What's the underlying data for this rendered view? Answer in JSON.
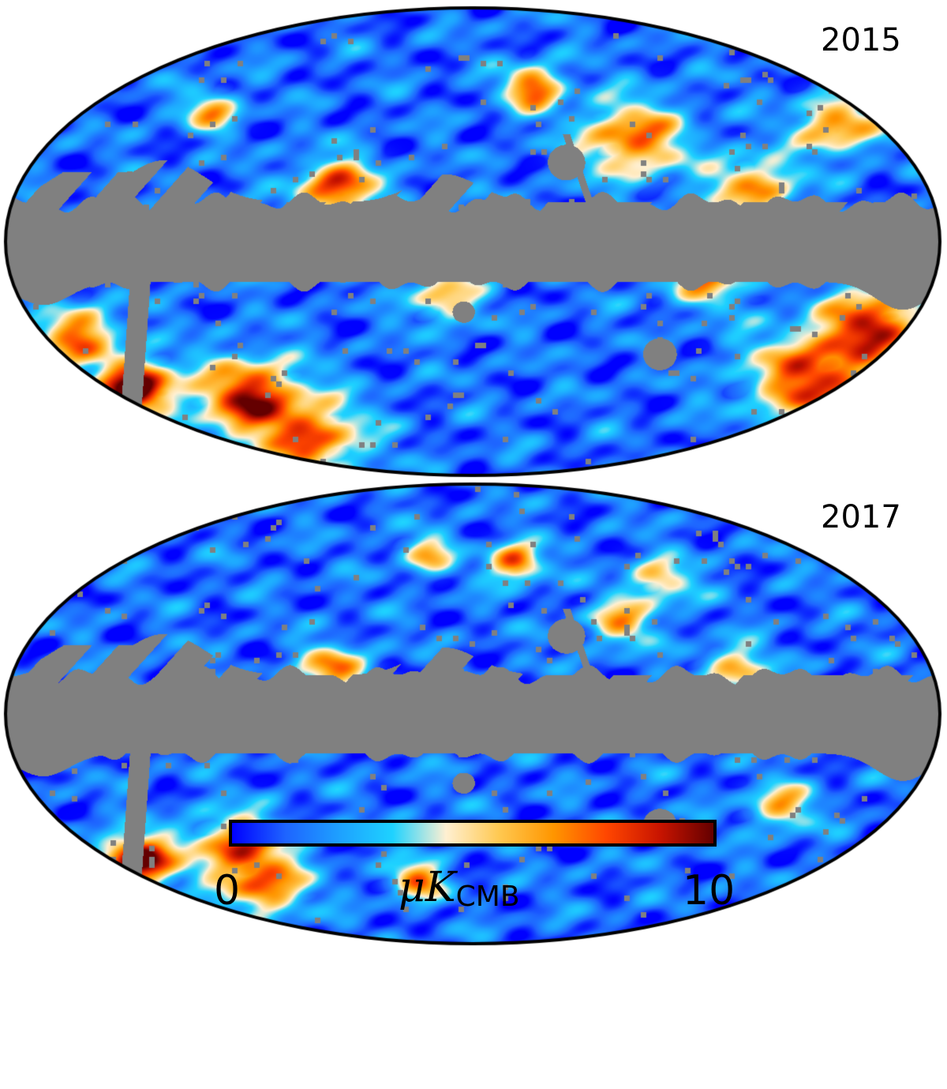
{
  "maps": [
    {
      "label": "2015",
      "blobs": [
        {
          "u": 0.355,
          "v": 0.385,
          "val": 7.2,
          "s": 1.2
        },
        {
          "u": 0.565,
          "v": 0.17,
          "val": 6.8,
          "s": 0.9
        },
        {
          "u": 0.67,
          "v": 0.28,
          "val": 6.2,
          "s": 1.6
        },
        {
          "u": 0.89,
          "v": 0.25,
          "val": 6.0,
          "s": 1.2
        },
        {
          "u": 0.8,
          "v": 0.38,
          "val": 5.4,
          "s": 1.3
        },
        {
          "u": 0.14,
          "v": 0.81,
          "val": 10.0,
          "s": 1.1
        },
        {
          "u": 0.26,
          "v": 0.83,
          "val": 7.6,
          "s": 1.6
        },
        {
          "u": 0.33,
          "v": 0.92,
          "val": 6.0,
          "s": 1.6
        },
        {
          "u": 0.87,
          "v": 0.79,
          "val": 7.4,
          "s": 2.0
        },
        {
          "u": 0.93,
          "v": 0.67,
          "val": 7.0,
          "s": 1.4
        },
        {
          "u": 0.75,
          "v": 0.57,
          "val": 5.0,
          "s": 1.3
        },
        {
          "u": 0.47,
          "v": 0.62,
          "val": 5.0,
          "s": 1.0
        },
        {
          "u": 0.08,
          "v": 0.7,
          "val": 6.0,
          "s": 1.2
        },
        {
          "u": 0.02,
          "v": 0.8,
          "val": 5.2,
          "s": 1.2
        },
        {
          "u": 0.22,
          "v": 0.22,
          "val": 5.2,
          "s": 0.8
        }
      ]
    },
    {
      "label": "2017",
      "blobs": [
        {
          "u": 0.545,
          "v": 0.17,
          "val": 7.0,
          "s": 0.8
        },
        {
          "u": 0.35,
          "v": 0.4,
          "val": 5.6,
          "s": 1.0
        },
        {
          "u": 0.14,
          "v": 0.82,
          "val": 10.0,
          "s": 1.1
        },
        {
          "u": 0.25,
          "v": 0.79,
          "val": 6.8,
          "s": 1.4
        },
        {
          "u": 0.28,
          "v": 0.88,
          "val": 5.6,
          "s": 1.2
        },
        {
          "u": 0.44,
          "v": 0.86,
          "val": 6.0,
          "s": 0.8
        },
        {
          "u": 0.78,
          "v": 0.4,
          "val": 4.8,
          "s": 1.0
        },
        {
          "u": 0.66,
          "v": 0.3,
          "val": 4.6,
          "s": 1.0
        },
        {
          "u": 0.83,
          "v": 0.7,
          "val": 4.6,
          "s": 1.0
        },
        {
          "u": 0.7,
          "v": 0.21,
          "val": 4.4,
          "s": 1.0
        },
        {
          "u": 0.45,
          "v": 0.15,
          "val": 4.6,
          "s": 0.8
        }
      ]
    }
  ],
  "colorbar": {
    "min_label": "0",
    "max_label": "10",
    "unit": "μK",
    "unit_sub": "CMB",
    "range": [
      0,
      10
    ],
    "colors": [
      "#0000ff",
      "#1e64ff",
      "#1ea0ff",
      "#1ed2ff",
      "#fff0d2",
      "#ffc850",
      "#ff9600",
      "#ff4600",
      "#c81400",
      "#640000"
    ]
  },
  "mask_color": "#808080"
}
